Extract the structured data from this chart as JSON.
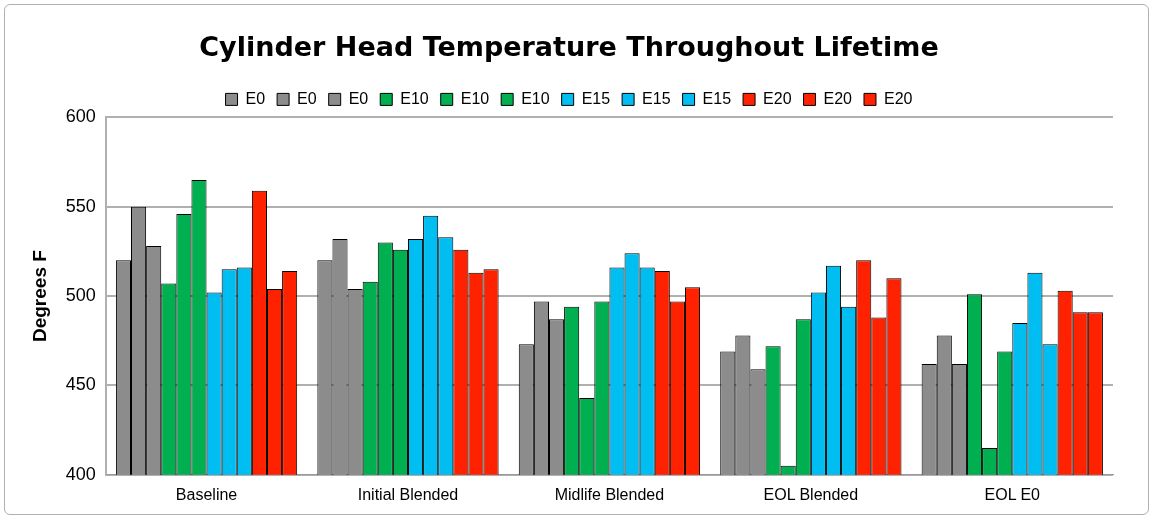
{
  "chart_data": {
    "type": "bar",
    "title": "Cylinder Head Temperature Throughout Lifetime",
    "ylabel": "Degrees F",
    "categories": [
      "Baseline",
      "Initial Blended",
      "Midlife Blended",
      "EOL Blended",
      "EOL E0"
    ],
    "series": [
      {
        "name": "E0",
        "color": "#8c8c8c",
        "values": [
          520,
          520,
          473,
          469,
          462
        ]
      },
      {
        "name": "E0",
        "color": "#8c8c8c",
        "values": [
          550,
          532,
          497,
          478,
          478
        ]
      },
      {
        "name": "E0",
        "color": "#8c8c8c",
        "values": [
          528,
          504,
          487,
          459,
          462
        ]
      },
      {
        "name": "E10",
        "color": "#00b050",
        "values": [
          507,
          508,
          494,
          472,
          501
        ]
      },
      {
        "name": "E10",
        "color": "#00b050",
        "values": [
          546,
          530,
          443,
          405,
          415
        ]
      },
      {
        "name": "E10",
        "color": "#00b050",
        "values": [
          565,
          526,
          497,
          487,
          469
        ]
      },
      {
        "name": "E15",
        "color": "#00bdf2",
        "values": [
          502,
          532,
          516,
          502,
          485
        ]
      },
      {
        "name": "E15",
        "color": "#00bdf2",
        "values": [
          515,
          545,
          524,
          517,
          513
        ]
      },
      {
        "name": "E15",
        "color": "#00bdf2",
        "values": [
          516,
          533,
          516,
          494,
          473
        ]
      },
      {
        "name": "E20",
        "color": "#ff2200",
        "values": [
          559,
          526,
          514,
          520,
          503
        ]
      },
      {
        "name": "E20",
        "color": "#ff2200",
        "values": [
          504,
          513,
          497,
          488,
          491
        ]
      },
      {
        "name": "E20",
        "color": "#ff2200",
        "values": [
          514,
          515,
          505,
          510,
          491
        ]
      }
    ],
    "ylim": [
      400,
      600
    ],
    "yticks": [
      400,
      450,
      500,
      550,
      600
    ],
    "grid": "y",
    "legend": "top"
  }
}
